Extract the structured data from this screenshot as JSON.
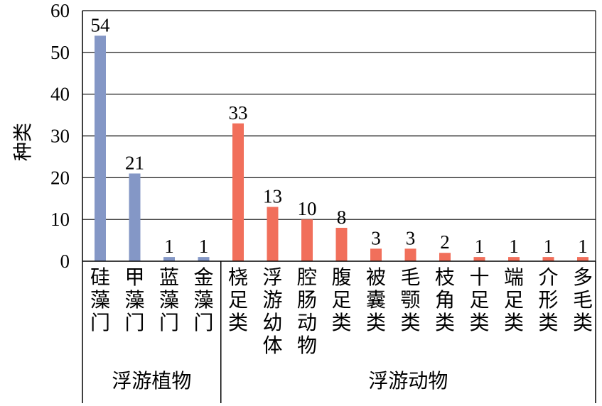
{
  "chart_data": {
    "type": "bar",
    "ylabel": "种类",
    "ylim": [
      0,
      60
    ],
    "yticks": [
      0,
      10,
      20,
      30,
      40,
      50,
      60
    ],
    "grid": true,
    "groups": [
      {
        "name": "浮游植物",
        "color": "#8497c6",
        "categories": [
          "硅藻门",
          "甲藻门",
          "蓝藻门",
          "金藻门"
        ],
        "values": [
          54,
          21,
          1,
          1
        ]
      },
      {
        "name": "浮游动物",
        "color": "#f16f5b",
        "categories": [
          "桡足类",
          "浮游幼体",
          "腔肠动物",
          "腹足类",
          "被囊类",
          "毛颚类",
          "枝角类",
          "十足类",
          "端足类",
          "介形类",
          "多毛类"
        ],
        "values": [
          33,
          13,
          10,
          8,
          3,
          3,
          2,
          1,
          1,
          1,
          1
        ]
      }
    ]
  }
}
